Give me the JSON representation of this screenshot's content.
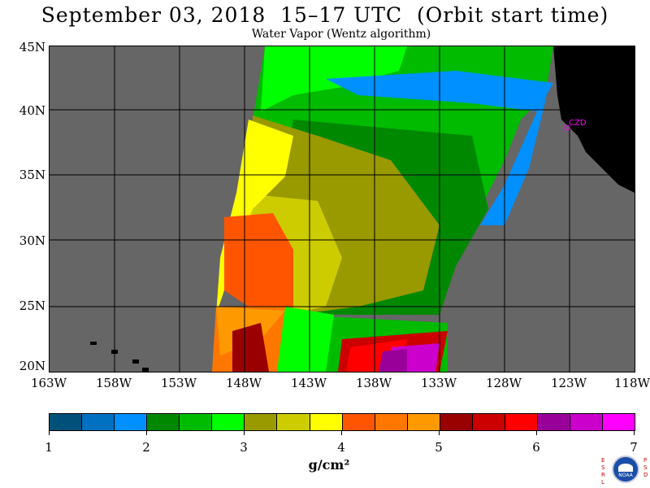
{
  "title": "September 03, 2018  15–17 UTC  (Orbit start time)",
  "subtitle": "Water Vapor (Wentz algorithm)",
  "lat_labels": [
    "45N",
    "40N",
    "35N",
    "30N",
    "25N",
    "20N"
  ],
  "lon_labels": [
    "163W",
    "158W",
    "153W",
    "148W",
    "143W",
    "138W",
    "133W",
    "128W",
    "123W",
    "118W"
  ],
  "colorbar": {
    "colors": [
      "#00507a",
      "#0070c0",
      "#0090ff",
      "#008800",
      "#00bb00",
      "#00ff00",
      "#999900",
      "#cccc00",
      "#ffff00",
      "#ff5500",
      "#ff7700",
      "#ff9900",
      "#990000",
      "#cc0000",
      "#ff0000",
      "#990099",
      "#cc00cc",
      "#ff00ff"
    ],
    "ticks": [
      "1",
      "2",
      "3",
      "4",
      "5",
      "6",
      "7"
    ],
    "unit": "g/cm²"
  },
  "map": {
    "land_color": "#000000",
    "nodata_color": "#666666",
    "city_label": "CZD"
  },
  "logo": {
    "left_letters": [
      "E",
      "S",
      "R",
      "L"
    ],
    "right_letters": [
      "P",
      "S",
      "D"
    ],
    "badge_text": "NOAA"
  }
}
